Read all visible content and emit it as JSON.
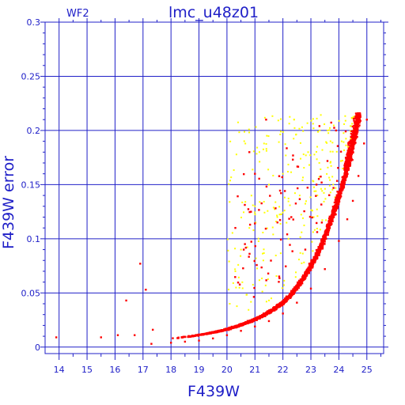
{
  "colors": {
    "axis": "#2020c8",
    "grid": "#2020c8",
    "main_sequence": "#ff0000",
    "flagged": "#ffff00",
    "background": "#ffffff"
  },
  "chart_data": {
    "type": "scatter",
    "title": "lmc_u48z01",
    "panel_label": "WF2",
    "xlabel": "F439W",
    "ylabel": "F439W error",
    "xlim": [
      13.5,
      25.6
    ],
    "ylim": [
      -0.006,
      0.3
    ],
    "x_ticks": [
      "14",
      "15",
      "16",
      "17",
      "18",
      "19",
      "20",
      "21",
      "22",
      "23",
      "24",
      "25"
    ],
    "y_ticks": [
      "0",
      "0.05",
      "0.1",
      "0.15",
      "0.2",
      "0.25",
      "0.3"
    ],
    "grid": true,
    "marker": "small square",
    "series": [
      {
        "color": "red",
        "description_shape": "dense exponential sequence: error ~0.004 at mag 18 rising to ~0.21 at mag 25",
        "sample_points": [
          [
            13.9,
            0.009
          ],
          [
            15.5,
            0.009
          ],
          [
            16.1,
            0.011
          ],
          [
            16.4,
            0.043
          ],
          [
            16.7,
            0.011
          ],
          [
            16.9,
            0.077
          ],
          [
            17.1,
            0.053
          ],
          [
            17.35,
            0.016
          ],
          [
            17.3,
            0.003
          ],
          [
            18.0,
            0.004
          ],
          [
            18.5,
            0.005
          ],
          [
            19.0,
            0.006
          ],
          [
            19.5,
            0.008
          ],
          [
            20.0,
            0.011
          ],
          [
            20.5,
            0.015
          ],
          [
            21.0,
            0.019
          ],
          [
            21.5,
            0.024
          ],
          [
            22.0,
            0.031
          ],
          [
            22.5,
            0.041
          ],
          [
            23.0,
            0.054
          ],
          [
            23.5,
            0.072
          ],
          [
            24.0,
            0.098
          ],
          [
            24.3,
            0.118
          ],
          [
            24.5,
            0.135
          ],
          [
            24.7,
            0.158
          ],
          [
            24.9,
            0.188
          ],
          [
            25.0,
            0.21
          ],
          [
            20.8,
            0.18
          ],
          [
            21.0,
            0.16
          ],
          [
            21.4,
            0.21
          ],
          [
            20.3,
            0.11
          ],
          [
            20.6,
            0.09
          ],
          [
            22.3,
            0.12
          ],
          [
            22.8,
            0.09
          ],
          [
            23.2,
            0.15
          ],
          [
            23.9,
            0.2
          ]
        ]
      },
      {
        "color": "yellow",
        "description_shape": "scattered points above the sequence, mag 20-24.5, error 0.03-0.21",
        "sample_points": [
          [
            20.1,
            0.04
          ],
          [
            20.3,
            0.07
          ],
          [
            20.5,
            0.09
          ],
          [
            20.8,
            0.11
          ],
          [
            21.0,
            0.13
          ],
          [
            21.3,
            0.08
          ],
          [
            21.5,
            0.15
          ],
          [
            21.8,
            0.12
          ],
          [
            22.0,
            0.16
          ],
          [
            22.2,
            0.1
          ],
          [
            22.4,
            0.21
          ],
          [
            22.6,
            0.14
          ],
          [
            22.9,
            0.18
          ],
          [
            23.1,
            0.12
          ],
          [
            23.3,
            0.17
          ],
          [
            23.6,
            0.2
          ],
          [
            23.8,
            0.15
          ],
          [
            24.1,
            0.19
          ],
          [
            24.3,
            0.17
          ],
          [
            24.5,
            0.2
          ]
        ]
      }
    ]
  }
}
